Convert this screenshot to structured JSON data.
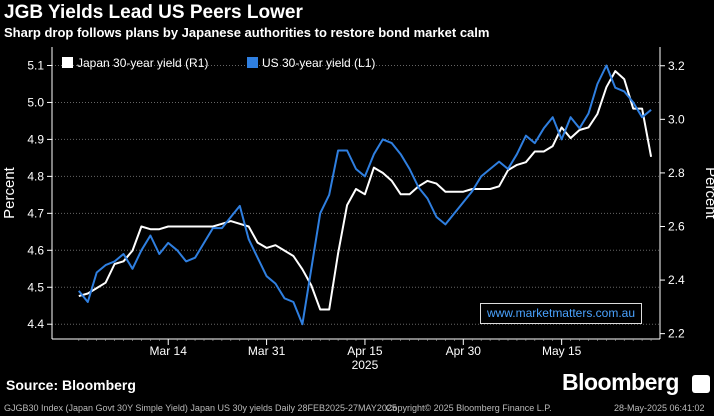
{
  "header": {
    "title": "JGB Yields Lead US Peers Lower",
    "subtitle": "Sharp drop follows plans by Japanese authorities to restore bond market calm"
  },
  "footer": {
    "source": "Source: Bloomberg",
    "brand": "Bloomberg",
    "meta_left": "GJGB30 Index (Japan Govt 30Y Simple Yield) Japan US 30y yields  Daily 28FEB2025-27MAY2025",
    "meta_mid": "Copyright© 2025 Bloomberg Finance L.P.",
    "meta_right": "28-May-2025 06:41:02"
  },
  "watermark": "www.marketmatters.com.au",
  "colors": {
    "japan": "#ffffff",
    "us": "#2f7fe0",
    "grid": "#666666"
  },
  "chart_data": {
    "type": "line",
    "title": "JGB Yields Lead US Peers Lower",
    "x_year_label": "2025",
    "x_ticks": [
      {
        "i": 10,
        "label": "Mar 14"
      },
      {
        "i": 21,
        "label": "Mar 31"
      },
      {
        "i": 32,
        "label": "Apr 15"
      },
      {
        "i": 43,
        "label": "Apr 30"
      },
      {
        "i": 54,
        "label": "May 15"
      }
    ],
    "x_range": [
      -3,
      65
    ],
    "left_axis": {
      "label": "Percent",
      "range": [
        4.36,
        5.15
      ],
      "ticks": [
        4.4,
        4.5,
        4.6,
        4.7,
        4.8,
        4.9,
        5.0,
        5.1
      ]
    },
    "right_axis": {
      "label": "Percent",
      "range": [
        2.18,
        3.27
      ],
      "ticks": [
        2.2,
        2.4,
        2.6,
        2.8,
        3.0,
        3.2
      ]
    },
    "series": [
      {
        "name": "Japan 30-year yield (R1)",
        "axis": "right",
        "values": [
          2.34,
          2.35,
          2.37,
          2.39,
          2.46,
          2.47,
          2.51,
          2.6,
          2.59,
          2.59,
          2.6,
          2.6,
          2.6,
          2.6,
          2.6,
          2.6,
          2.61,
          2.62,
          2.61,
          2.6,
          2.54,
          2.52,
          2.53,
          2.51,
          2.49,
          2.44,
          2.38,
          2.29,
          2.29,
          2.5,
          2.68,
          2.74,
          2.72,
          2.82,
          2.8,
          2.77,
          2.72,
          2.72,
          2.75,
          2.77,
          2.76,
          2.73,
          2.73,
          2.73,
          2.74,
          2.74,
          2.74,
          2.75,
          2.81,
          2.83,
          2.84,
          2.88,
          2.88,
          2.9,
          2.97,
          2.93,
          2.96,
          2.97,
          3.02,
          3.12,
          3.18,
          3.15,
          3.04,
          3.04,
          2.86
        ]
      },
      {
        "name": "US 30-year yield  (L1)",
        "axis": "left",
        "values": [
          4.49,
          4.46,
          4.54,
          4.56,
          4.57,
          4.59,
          4.55,
          4.6,
          4.64,
          4.59,
          4.62,
          4.6,
          4.57,
          4.58,
          4.62,
          4.66,
          4.66,
          4.69,
          4.72,
          4.63,
          4.58,
          4.53,
          4.51,
          4.47,
          4.46,
          4.4,
          4.55,
          4.7,
          4.75,
          4.87,
          4.87,
          4.82,
          4.8,
          4.86,
          4.9,
          4.89,
          4.86,
          4.82,
          4.77,
          4.74,
          4.69,
          4.67,
          4.7,
          4.73,
          4.76,
          4.8,
          4.82,
          4.84,
          4.82,
          4.86,
          4.91,
          4.89,
          4.93,
          4.96,
          4.9,
          4.96,
          4.93,
          4.97,
          5.05,
          5.1,
          5.04,
          5.03,
          5.0,
          4.96,
          4.98
        ]
      }
    ]
  }
}
